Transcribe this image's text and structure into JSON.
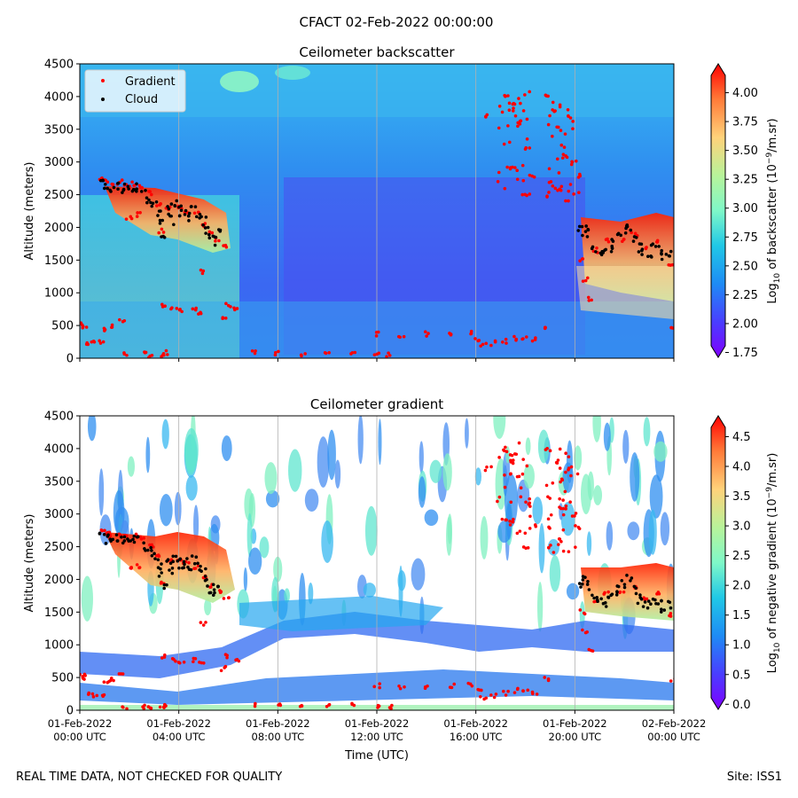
{
  "title": "CFACT 02-Feb-2022 00:00:00",
  "footer": {
    "left": "REAL TIME DATA, NOT CHECKED FOR QUALITY",
    "right": "Site: ISS1"
  },
  "chart_data": [
    {
      "type": "heatmap",
      "title": "Ceilometer backscatter",
      "ylabel": "Altitude (meters)",
      "xlabel": "",
      "ylim": [
        0,
        4500
      ],
      "yticks": [
        0,
        500,
        1000,
        1500,
        2000,
        2500,
        3000,
        3500,
        4000,
        4500
      ],
      "xticks": [
        "01-Feb-2022 00:00 UTC",
        "01-Feb-2022 04:00 UTC",
        "01-Feb-2022 08:00 UTC",
        "01-Feb-2022 12:00 UTC",
        "01-Feb-2022 16:00 UTC",
        "01-Feb-2022 20:00 UTC",
        "02-Feb-2022 00:00 UTC"
      ],
      "xlim_hours": [
        0,
        24
      ],
      "vertical_grid": true,
      "legend": {
        "placement": "top-left",
        "entries": [
          {
            "label": "Gradient",
            "color": "#ff0000"
          },
          {
            "label": "Cloud",
            "color": "#000000"
          }
        ]
      },
      "colorbar": {
        "label_parts": [
          "Log",
          "10",
          " of backscatter (10",
          "−9",
          "/m.sr)"
        ],
        "range": [
          1.7,
          4.25
        ],
        "ticks": [
          "1.75",
          "2.00",
          "2.25",
          "2.50",
          "2.75",
          "3.00",
          "3.25",
          "3.50",
          "3.75",
          "4.00"
        ],
        "tick_values": [
          1.75,
          2.0,
          2.25,
          2.5,
          2.75,
          3.0,
          3.25,
          3.5,
          3.75,
          4.0
        ],
        "colormap": "rainbow"
      }
    },
    {
      "type": "heatmap",
      "title": "Ceilometer gradient",
      "ylabel": "Altitude (meters)",
      "xlabel": "Time (UTC)",
      "ylim": [
        0,
        4500
      ],
      "yticks": [
        0,
        500,
        1000,
        1500,
        2000,
        2500,
        3000,
        3500,
        4000,
        4500
      ],
      "xticks": [
        "01-Feb-2022 00:00 UTC",
        "01-Feb-2022 04:00 UTC",
        "01-Feb-2022 08:00 UTC",
        "01-Feb-2022 12:00 UTC",
        "01-Feb-2022 16:00 UTC",
        "01-Feb-2022 20:00 UTC",
        "02-Feb-2022 00:00 UTC"
      ],
      "xticks_lines": [
        [
          "01-Feb-2022",
          "00:00 UTC"
        ],
        [
          "01-Feb-2022",
          "04:00 UTC"
        ],
        [
          "01-Feb-2022",
          "08:00 UTC"
        ],
        [
          "01-Feb-2022",
          "12:00 UTC"
        ],
        [
          "01-Feb-2022",
          "16:00 UTC"
        ],
        [
          "01-Feb-2022",
          "20:00 UTC"
        ],
        [
          "02-Feb-2022",
          "00:00 UTC"
        ]
      ],
      "xlim_hours": [
        0,
        24
      ],
      "vertical_grid": true,
      "colorbar": {
        "label_parts": [
          "Log",
          "10",
          " of negative gradient (10",
          "−9",
          "/m.sr)"
        ],
        "range": [
          -0.1,
          4.85
        ],
        "ticks": [
          "0.0",
          "0.5",
          "1.0",
          "1.5",
          "2.0",
          "2.5",
          "3.0",
          "3.5",
          "4.0",
          "4.5"
        ],
        "tick_values": [
          0.0,
          0.5,
          1.0,
          1.5,
          2.0,
          2.5,
          3.0,
          3.5,
          4.0,
          4.5
        ],
        "colormap": "rainbow"
      }
    }
  ],
  "markers": {
    "cloud_layer_2k": [
      [
        0.9,
        2650
      ],
      [
        1.1,
        2620
      ],
      [
        1.3,
        2600
      ],
      [
        1.5,
        2640
      ],
      [
        1.7,
        2580
      ],
      [
        1.9,
        2620
      ],
      [
        2.1,
        2590
      ],
      [
        2.3,
        2600
      ],
      [
        2.6,
        2500
      ],
      [
        2.8,
        2450
      ],
      [
        3.0,
        2350
      ],
      [
        3.2,
        2250
      ],
      [
        3.3,
        2100
      ],
      [
        3.4,
        1900
      ],
      [
        3.6,
        2250
      ],
      [
        3.7,
        2100
      ],
      [
        3.8,
        2300
      ],
      [
        4.0,
        2350
      ],
      [
        4.1,
        2200
      ],
      [
        4.3,
        2250
      ],
      [
        4.4,
        2150
      ],
      [
        4.6,
        2300
      ],
      [
        4.8,
        2200
      ],
      [
        5.0,
        2100
      ],
      [
        5.1,
        1950
      ],
      [
        5.3,
        1850
      ],
      [
        5.5,
        1800
      ],
      [
        5.6,
        1900
      ],
      [
        20.2,
        1950
      ],
      [
        20.4,
        2000
      ],
      [
        20.6,
        1900
      ],
      [
        20.8,
        1700
      ],
      [
        21.0,
        1650
      ],
      [
        21.2,
        1600
      ],
      [
        21.4,
        1700
      ],
      [
        21.6,
        1750
      ],
      [
        21.8,
        1850
      ],
      [
        22.0,
        1950
      ],
      [
        22.2,
        2000
      ],
      [
        22.4,
        1850
      ],
      [
        22.6,
        1700
      ],
      [
        22.8,
        1650
      ],
      [
        23.0,
        1600
      ],
      [
        23.2,
        1700
      ],
      [
        23.4,
        1650
      ],
      [
        23.6,
        1550
      ],
      [
        23.8,
        1600
      ]
    ],
    "gradient_layer": [
      [
        0.9,
        2750
      ],
      [
        1.1,
        2700
      ],
      [
        1.3,
        2680
      ],
      [
        1.6,
        2690
      ],
      [
        1.9,
        2650
      ],
      [
        2.2,
        2660
      ],
      [
        2.5,
        2620
      ],
      [
        2.9,
        2520
      ],
      [
        3.2,
        2350
      ],
      [
        3.6,
        2300
      ],
      [
        4.0,
        2300
      ],
      [
        4.3,
        2250
      ],
      [
        4.7,
        2200
      ],
      [
        5.0,
        2050
      ],
      [
        5.3,
        1900
      ],
      [
        5.6,
        1800
      ],
      [
        5.9,
        1700
      ],
      [
        2.0,
        2150
      ],
      [
        2.4,
        2200
      ],
      [
        3.3,
        1950
      ],
      [
        0.1,
        540
      ],
      [
        0.2,
        500
      ],
      [
        0.3,
        240
      ],
      [
        0.6,
        230
      ],
      [
        0.9,
        240
      ],
      [
        1.1,
        450
      ],
      [
        1.3,
        480
      ],
      [
        1.7,
        560
      ],
      [
        1.8,
        50
      ],
      [
        2.6,
        60
      ],
      [
        2.8,
        40
      ],
      [
        3.3,
        30
      ],
      [
        3.5,
        80
      ],
      [
        3.4,
        820
      ],
      [
        3.8,
        760
      ],
      [
        4.1,
        720
      ],
      [
        4.6,
        760
      ],
      [
        4.9,
        700
      ],
      [
        5.0,
        1330
      ],
      [
        5.8,
        640
      ],
      [
        6.0,
        820
      ],
      [
        6.3,
        760
      ],
      [
        7.0,
        80
      ],
      [
        8.0,
        70
      ],
      [
        9.0,
        60
      ],
      [
        10.0,
        70
      ],
      [
        11.0,
        80
      ],
      [
        12.0,
        60
      ],
      [
        12.5,
        50
      ],
      [
        12.0,
        370
      ],
      [
        13.0,
        340
      ],
      [
        14.0,
        370
      ],
      [
        15.0,
        380
      ],
      [
        15.8,
        400
      ],
      [
        16.1,
        300
      ],
      [
        16.3,
        200
      ],
      [
        16.7,
        230
      ],
      [
        17.2,
        260
      ],
      [
        17.6,
        300
      ],
      [
        18.0,
        310
      ],
      [
        18.4,
        280
      ],
      [
        18.9,
        480
      ],
      [
        16.5,
        3700
      ],
      [
        17.2,
        4000
      ],
      [
        17.5,
        3900
      ],
      [
        17.8,
        3600
      ],
      [
        18.1,
        3200
      ],
      [
        18.3,
        2800
      ],
      [
        18.0,
        2500
      ],
      [
        17.6,
        2900
      ],
      [
        17.4,
        3800
      ],
      [
        17.3,
        2900
      ],
      [
        18.9,
        4000
      ],
      [
        19.2,
        3800
      ],
      [
        19.4,
        3500
      ],
      [
        19.6,
        3100
      ],
      [
        19.4,
        2600
      ],
      [
        19.0,
        2500
      ],
      [
        19.8,
        3700
      ],
      [
        20.0,
        3000
      ],
      [
        20.1,
        2800
      ],
      [
        20.3,
        1500
      ],
      [
        20.4,
        1200
      ],
      [
        20.6,
        900
      ],
      [
        20.8,
        1650
      ],
      [
        21.3,
        1800
      ],
      [
        21.9,
        1800
      ],
      [
        22.4,
        1900
      ],
      [
        22.9,
        1700
      ],
      [
        23.4,
        1800
      ],
      [
        23.9,
        1450
      ],
      [
        24.0,
        460
      ]
    ],
    "high_gradient_clusters": [
      {
        "center": [
          17.5,
          3300
        ],
        "count": 24
      },
      {
        "center": [
          19.5,
          3200
        ],
        "count": 28
      }
    ]
  }
}
